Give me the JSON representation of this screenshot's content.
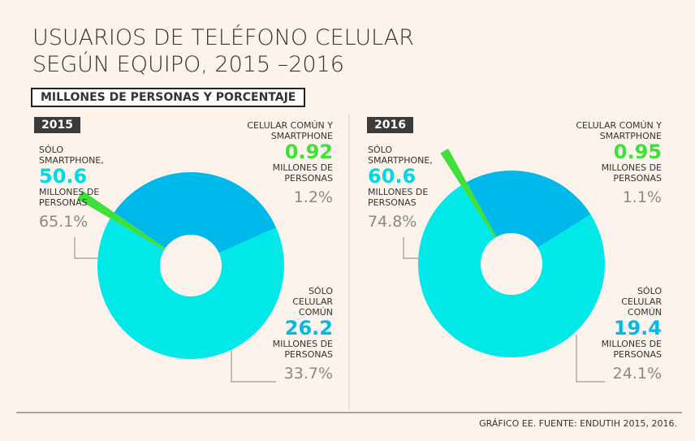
{
  "title": "USUARIOS DE TELÉFONO CELULAR SEGÚN EQUIPO, 2015 –2016",
  "subtitle": "MILLONES DE PERSONAS Y PORCENTAJE",
  "source": "GRÁFICO EE. FUENTE: ENDUTIH 2015, 2016.",
  "unit": "MILLONES DE PERSONAS",
  "chart_data": [
    {
      "type": "donut",
      "title": "2015",
      "categories": [
        "SÓLO SMARTPHONE,",
        "CELULAR COMÚN Y SMARTPHONE",
        "SÓLO CELULAR COMÚN"
      ],
      "values": [
        65.1,
        1.2,
        33.7
      ],
      "value_labels": [
        "65.1%",
        "1.2%",
        "33.7%"
      ],
      "millions": [
        50.6,
        0.92,
        26.2
      ],
      "colors": [
        "#00e8e8",
        "#3fe03a",
        "#00b9ea"
      ]
    },
    {
      "type": "donut",
      "title": "2016",
      "categories": [
        "SÓLO SMARTPHONE,",
        "CELULAR COMÚN Y SMARTPHONE",
        "SÓLO CELULAR COMÚN"
      ],
      "values": [
        74.8,
        1.1,
        24.1
      ],
      "value_labels": [
        "74.8%",
        "1.1%",
        "24.1%"
      ],
      "millions": [
        60.6,
        0.95,
        19.4
      ],
      "colors": [
        "#00e8e8",
        "#3fe03a",
        "#00b9ea"
      ]
    }
  ]
}
